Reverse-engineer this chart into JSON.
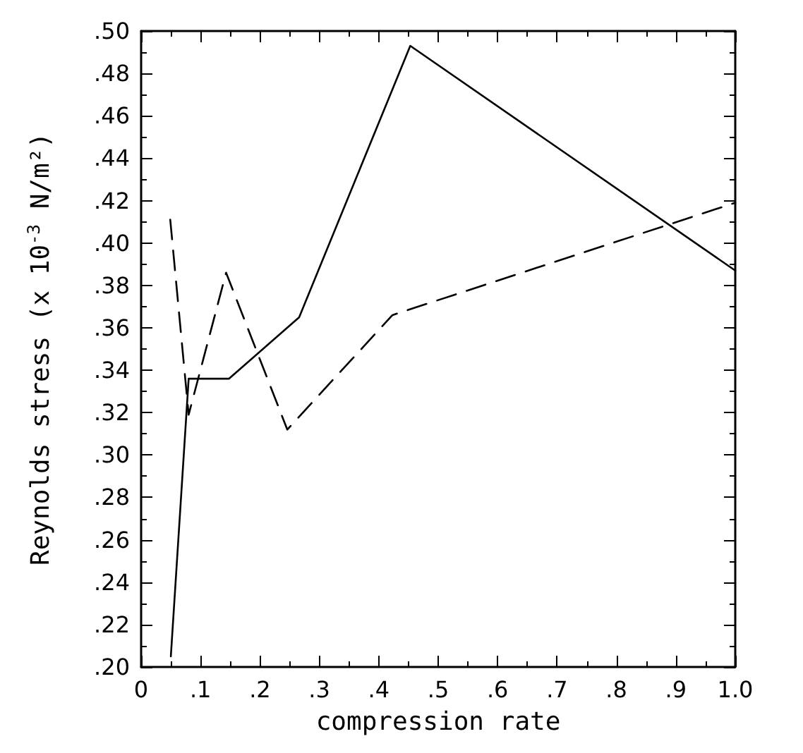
{
  "chart_data": {
    "type": "line",
    "xlabel": "compression rate",
    "ylabel": "Reynolds stress (x 10$^{-3}$ N/m²)",
    "series": [
      {
        "color": "#000000",
        "line_style": "solid",
        "x": [
          0.05,
          0.08,
          0.148,
          0.266,
          0.453,
          1.0
        ],
        "values": [
          0.205,
          0.336,
          0.336,
          0.365,
          0.493,
          0.387
        ]
      },
      {
        "color": "#000000",
        "line_style": "dashed",
        "x": [
          0.049,
          0.08,
          0.143,
          0.246,
          0.423,
          1.0
        ],
        "values": [
          0.411,
          0.319,
          0.386,
          0.312,
          0.366,
          0.419
        ]
      }
    ],
    "xlim": [
      0,
      1.0
    ],
    "xticks": [
      {
        "value": 0,
        "label": "0"
      },
      {
        "value": 0.1,
        "label": ".1"
      },
      {
        "value": 0.2,
        "label": ".2"
      },
      {
        "value": 0.3,
        "label": ".3"
      },
      {
        "value": 0.4,
        "label": ".4"
      },
      {
        "value": 0.5,
        "label": ".5"
      },
      {
        "value": 0.6,
        "label": ".6"
      },
      {
        "value": 0.7,
        "label": ".7"
      },
      {
        "value": 0.8,
        "label": ".8"
      },
      {
        "value": 0.9,
        "label": ".9"
      },
      {
        "value": 1.0,
        "label": "1.0"
      }
    ],
    "ylim": [
      0.2,
      0.5
    ],
    "yticks": [
      {
        "value": 0.2,
        "label": ".20"
      },
      {
        "value": 0.22,
        "label": ".22"
      },
      {
        "value": 0.24,
        "label": ".24"
      },
      {
        "value": 0.26,
        "label": ".26"
      },
      {
        "value": 0.28,
        "label": ".28"
      },
      {
        "value": 0.3,
        "label": ".30"
      },
      {
        "value": 0.32,
        "label": ".32"
      },
      {
        "value": 0.34,
        "label": ".34"
      },
      {
        "value": 0.36,
        "label": ".36"
      },
      {
        "value": 0.38,
        "label": ".38"
      },
      {
        "value": 0.4,
        "label": ".40"
      },
      {
        "value": 0.42,
        "label": ".42"
      },
      {
        "value": 0.44,
        "label": ".44"
      },
      {
        "value": 0.46,
        "label": ".46"
      },
      {
        "value": 0.48,
        "label": ".48"
      },
      {
        "value": 0.5,
        "label": ".50"
      }
    ]
  }
}
